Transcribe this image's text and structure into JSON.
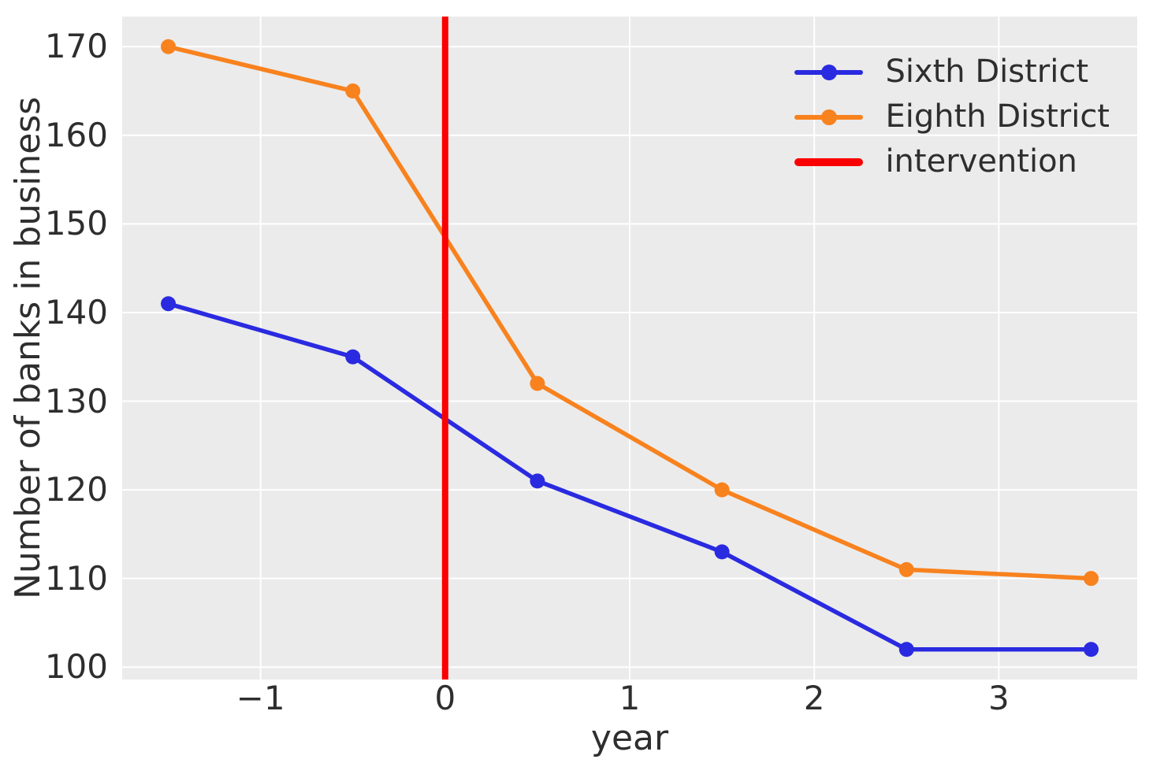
{
  "figure": {
    "background": "#ffffff",
    "plot_background": "#ebebeb",
    "grid_color": "#ffffff",
    "text_color": "#2e2e2e"
  },
  "chart_data": {
    "type": "line",
    "xlabel": "year",
    "ylabel": "Number of banks in business",
    "x": [
      -1.5,
      -0.5,
      0.5,
      1.5,
      2.5,
      3.5
    ],
    "series": [
      {
        "name": "Sixth District",
        "color": "#2a2ae0",
        "marker": "circle",
        "values": [
          141,
          135,
          121,
          113,
          102,
          102
        ]
      },
      {
        "name": "Eighth District",
        "color": "#f8821e",
        "marker": "circle",
        "values": [
          170,
          165,
          132,
          120,
          111,
          110
        ]
      }
    ],
    "vline": {
      "label": "intervention",
      "x": 0,
      "color": "#fb0000"
    },
    "xlim": [
      -1.75,
      3.75
    ],
    "ylim": [
      98.6,
      173.4
    ],
    "xticks": [
      -1,
      0,
      1,
      2,
      3
    ],
    "xtick_labels": [
      "−1",
      "0",
      "1",
      "2",
      "3"
    ],
    "yticks": [
      100,
      110,
      120,
      130,
      140,
      150,
      160,
      170
    ],
    "ytick_labels": [
      "100",
      "110",
      "120",
      "130",
      "140",
      "150",
      "160",
      "170"
    ],
    "grid": true,
    "legend_position": "upper right",
    "legend": [
      "Sixth District",
      "Eighth District",
      "intervention"
    ]
  }
}
